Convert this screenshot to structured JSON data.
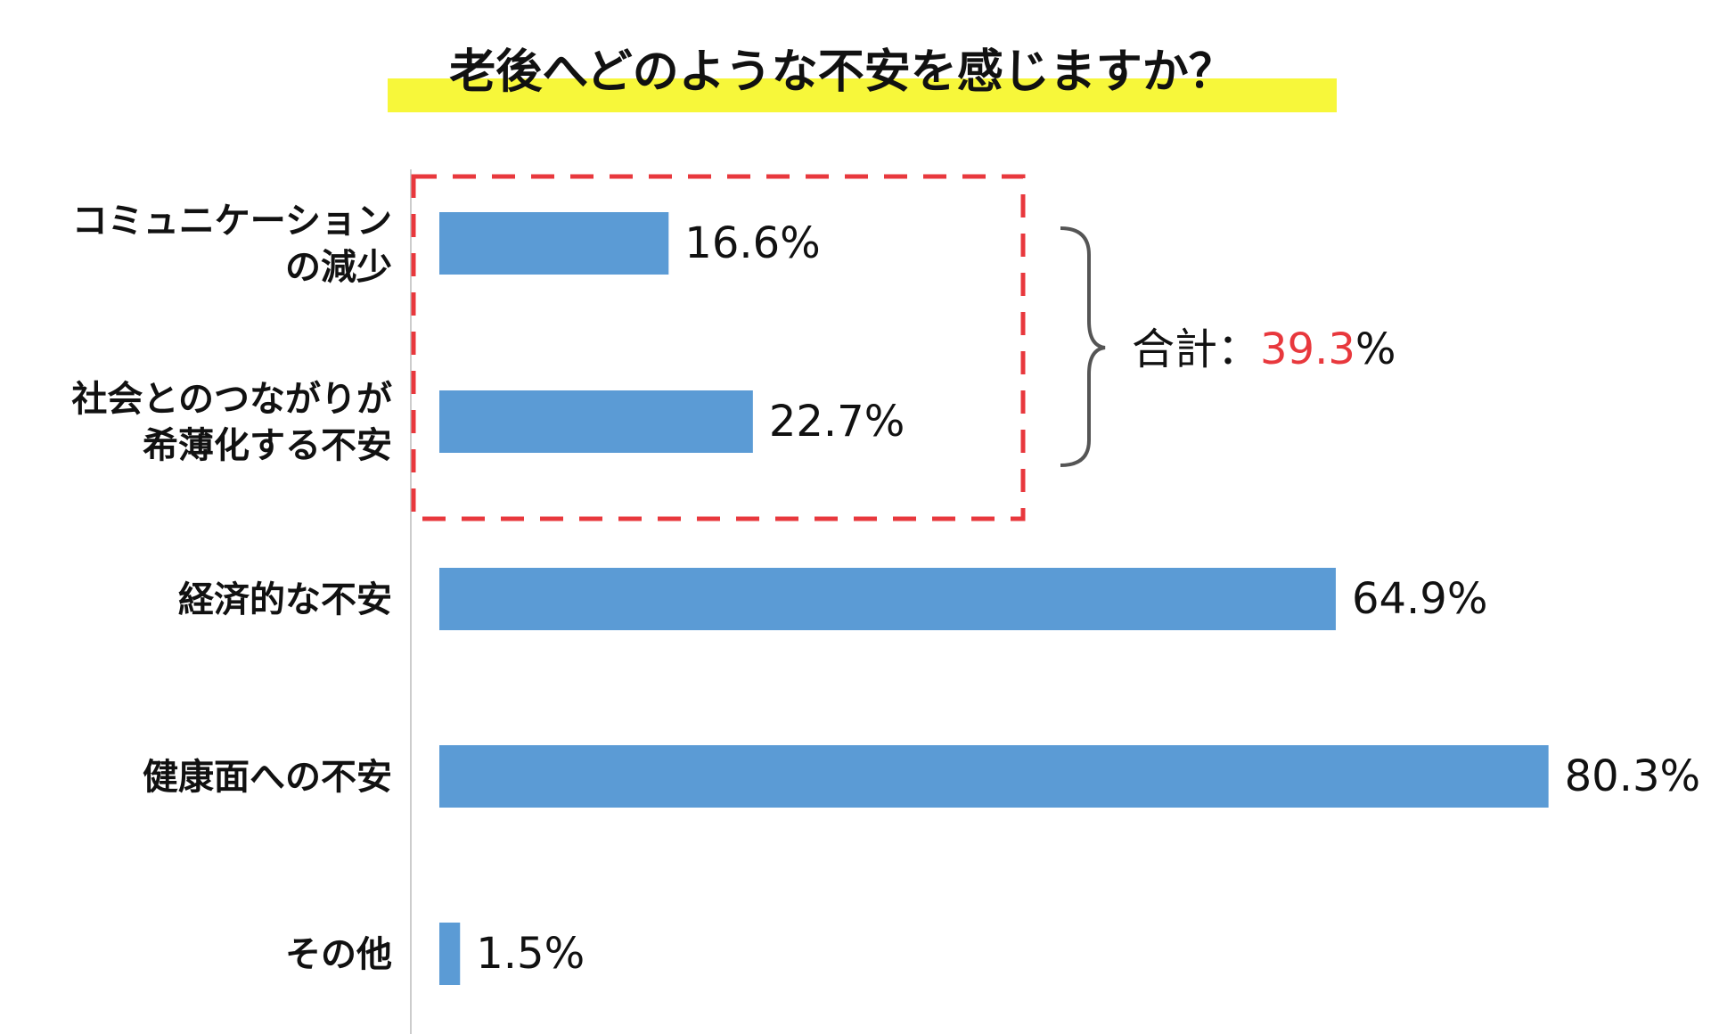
{
  "chart_data": {
    "type": "bar",
    "orientation": "horizontal",
    "title": "老後へどのような不安を感じますか？",
    "title_highlight_color": "#f7f73a",
    "bar_color": "#5b9bd5",
    "xlim": [
      0,
      100
    ],
    "categories": [
      {
        "lines": [
          "コミュニケーション",
          "の減少"
        ]
      },
      {
        "lines": [
          "社会とのつながりが",
          "希薄化する不安"
        ]
      },
      {
        "lines": [
          "経済的な不安"
        ]
      },
      {
        "lines": [
          "健康面への不安"
        ]
      },
      {
        "lines": [
          "その他"
        ]
      }
    ],
    "values": [
      16.6,
      22.7,
      64.9,
      80.3,
      1.5
    ],
    "value_labels": [
      "16.6%",
      "22.7%",
      "64.9%",
      "80.3%",
      "1.5%"
    ],
    "annotation": {
      "highlight_box_color": "#e8383d",
      "prefix": "合計：",
      "value": "39.3",
      "suffix": "%",
      "value_color": "#e8383d",
      "covers": [
        0,
        1
      ]
    }
  }
}
